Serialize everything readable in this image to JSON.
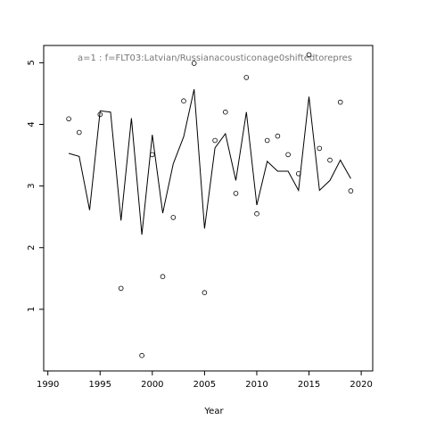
{
  "chart_data": {
    "type": "line",
    "annotation": "a=1  :  f=FLT03:Latvian/Russianacousticonage0shiftedtorepres",
    "xlabel": "Year",
    "ylabel": "",
    "xlim": [
      1989.6,
      2021.1
    ],
    "ylim": [
      0.0,
      5.28
    ],
    "xticks": [
      1990,
      1995,
      2000,
      2005,
      2010,
      2015,
      2020
    ],
    "xtick_labels": [
      "1990",
      "1995",
      "2000",
      "2005",
      "2010",
      "2015",
      "2020"
    ],
    "yticks": [
      1,
      2,
      3,
      4,
      5
    ],
    "ytick_labels": [
      "1",
      "2",
      "3",
      "4",
      "5"
    ],
    "grid": false,
    "series": [
      {
        "type": "line",
        "x": [
          1992,
          1993,
          1994,
          1995,
          1996,
          1997,
          1998,
          1999,
          2000,
          2001,
          2002,
          2003,
          2004,
          2005,
          2006,
          2007,
          2008,
          2009,
          2010,
          2011,
          2012,
          2013,
          2014,
          2015,
          2016,
          2017,
          2018,
          2019
        ],
        "y": [
          3.53,
          3.48,
          2.61,
          4.22,
          4.2,
          2.44,
          4.1,
          2.21,
          3.83,
          2.56,
          3.36,
          3.8,
          4.57,
          2.31,
          3.62,
          3.85,
          3.09,
          4.2,
          2.69,
          3.4,
          3.24,
          3.24,
          2.93,
          4.45,
          2.93,
          3.09,
          3.42,
          3.12
        ]
      },
      {
        "type": "scatter",
        "x": [
          1992,
          1993,
          1995,
          1997,
          1999,
          2000,
          2001,
          2002,
          2003,
          2004,
          2005,
          2006,
          2007,
          2008,
          2009,
          2010,
          2011,
          2012,
          2013,
          2014,
          2015,
          2016,
          2017,
          2018,
          2019
        ],
        "y": [
          4.09,
          3.87,
          4.16,
          1.34,
          0.25,
          3.51,
          1.53,
          2.49,
          4.38,
          4.99,
          1.27,
          3.74,
          4.2,
          2.88,
          4.76,
          2.55,
          3.74,
          3.81,
          3.51,
          3.2,
          5.13,
          3.61,
          3.42,
          4.36,
          2.92
        ]
      }
    ]
  }
}
